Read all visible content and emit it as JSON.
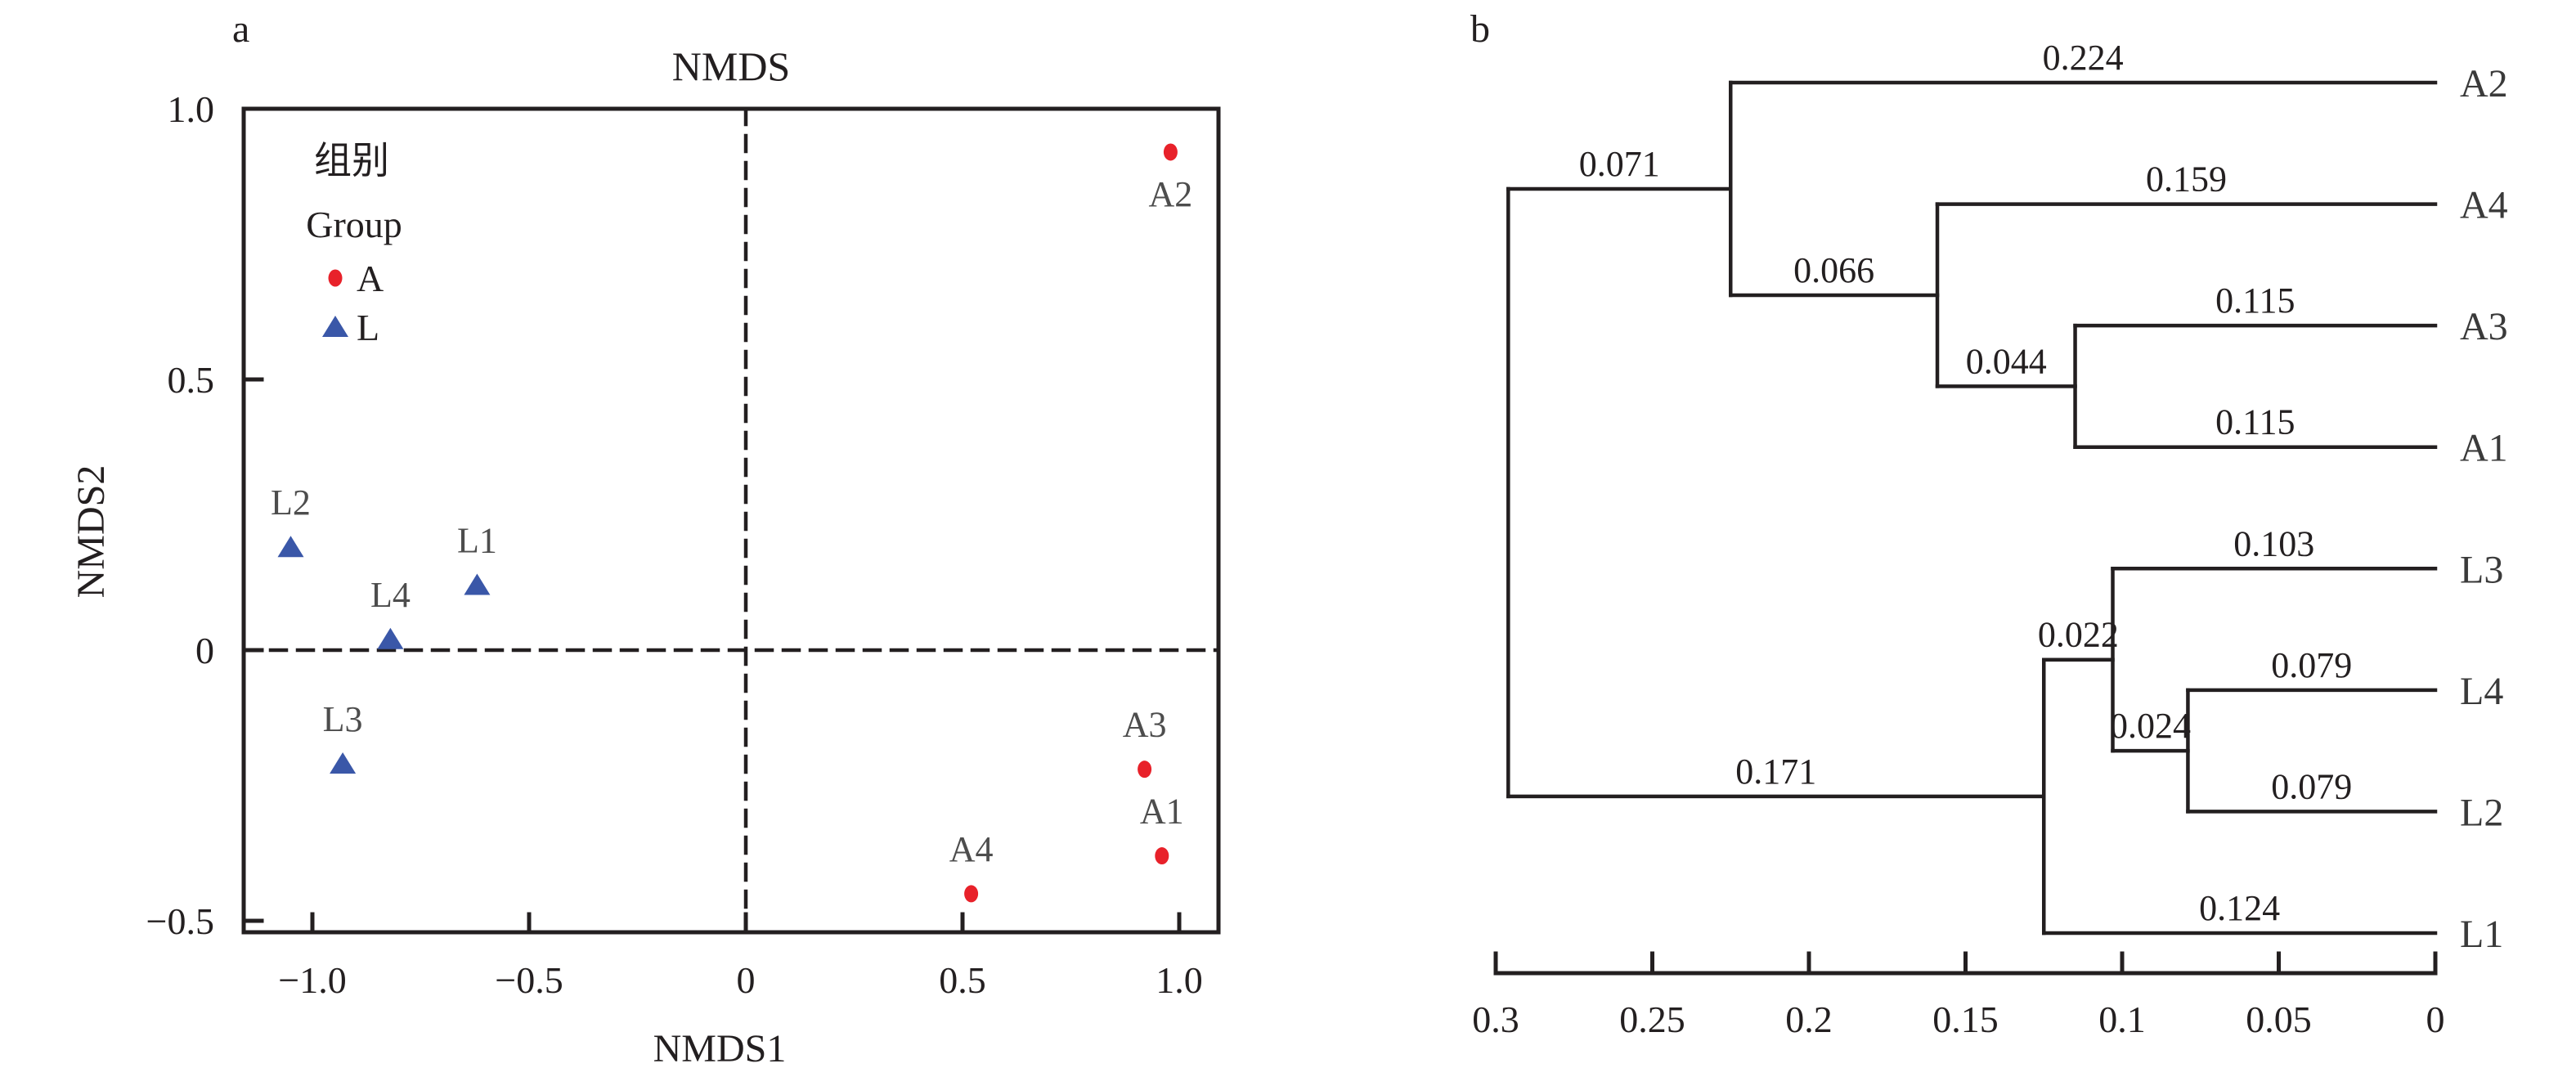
{
  "figure": {
    "panel_a_letter": "a",
    "panel_b_letter": "b",
    "colors": {
      "line": "#231f20",
      "point_label_gray": "#4d4d4d",
      "leaf_label": "#3a3a3a",
      "red": "#e8212a",
      "blue": "#3a57a8",
      "background": "#ffffff"
    }
  },
  "chart_data": [
    {
      "type": "scatter",
      "panel": "a",
      "title": "NMDS",
      "xlabel": "NMDS1",
      "ylabel": "NMDS2",
      "xlim": [
        -1.16,
        1.09
      ],
      "ylim": [
        -0.52,
        1.0
      ],
      "grid": false,
      "reference_lines": {
        "x": 0,
        "y": 0,
        "style": "dashed"
      },
      "xticks": [
        {
          "v": -1.0,
          "label": "−1.0"
        },
        {
          "v": -0.5,
          "label": "−0.5"
        },
        {
          "v": 0,
          "label": "0"
        },
        {
          "v": 0.5,
          "label": "0.5"
        },
        {
          "v": 1.0,
          "label": "1.0"
        }
      ],
      "yticks": [
        {
          "v": 1.0,
          "label": "1.0"
        },
        {
          "v": 0.5,
          "label": "0.5"
        },
        {
          "v": 0,
          "label": "0"
        },
        {
          "v": -0.5,
          "label": "−0.5"
        }
      ],
      "legend": {
        "title_cn": "组别",
        "title_en": "Group",
        "position": "upper-left-inside",
        "entries": [
          {
            "label": "A",
            "marker": "circle",
            "color": "#e8212a"
          },
          {
            "label": "L",
            "marker": "triangle",
            "color": "#3a57a8"
          }
        ]
      },
      "series": [
        {
          "name": "A",
          "marker": "circle",
          "color": "#e8212a",
          "points": [
            {
              "label": "A2",
              "x": 0.98,
              "y": 0.92,
              "label_pos": "below"
            },
            {
              "label": "A3",
              "x": 0.92,
              "y": -0.22,
              "label_pos": "above"
            },
            {
              "label": "A1",
              "x": 0.96,
              "y": -0.38,
              "label_pos": "above"
            },
            {
              "label": "A4",
              "x": 0.52,
              "y": -0.45,
              "label_pos": "above"
            }
          ]
        },
        {
          "name": "L",
          "marker": "triangle",
          "color": "#3a57a8",
          "points": [
            {
              "label": "L2",
              "x": -1.05,
              "y": 0.19,
              "label_pos": "above"
            },
            {
              "label": "L1",
              "x": -0.62,
              "y": 0.12,
              "label_pos": "above"
            },
            {
              "label": "L4",
              "x": -0.82,
              "y": 0.02,
              "label_pos": "above"
            },
            {
              "label": "L3",
              "x": -0.93,
              "y": -0.21,
              "label_pos": "above"
            }
          ]
        }
      ]
    },
    {
      "type": "dendrogram",
      "panel": "b",
      "orientation": "leaves-right",
      "axis": {
        "ticks": [
          {
            "v": 0.3,
            "label": "0.3"
          },
          {
            "v": 0.25,
            "label": "0.25"
          },
          {
            "v": 0.2,
            "label": "0.2"
          },
          {
            "v": 0.15,
            "label": "0.15"
          },
          {
            "v": 0.1,
            "label": "0.1"
          },
          {
            "v": 0.05,
            "label": "0.05"
          },
          {
            "v": 0,
            "label": "0"
          }
        ]
      },
      "leaf_order": [
        "A2",
        "A4",
        "A3",
        "A1",
        "L3",
        "L4",
        "L2",
        "L1"
      ],
      "tree": {
        "children": [
          {
            "length": 0.071,
            "length_label": "0.071",
            "children": [
              {
                "length": 0.224,
                "length_label": "0.224",
                "leaf": "A2"
              },
              {
                "length": 0.066,
                "length_label": "0.066",
                "children": [
                  {
                    "length": 0.159,
                    "length_label": "0.159",
                    "leaf": "A4"
                  },
                  {
                    "length": 0.044,
                    "length_label": "0.044",
                    "children": [
                      {
                        "length": 0.115,
                        "length_label": "0.115",
                        "leaf": "A3"
                      },
                      {
                        "length": 0.115,
                        "length_label": "0.115",
                        "leaf": "A1"
                      }
                    ]
                  }
                ]
              }
            ]
          },
          {
            "length": 0.171,
            "length_label": "0.171",
            "children": [
              {
                "length": 0.022,
                "length_label": "0.022",
                "children": [
                  {
                    "length": 0.103,
                    "length_label": "0.103",
                    "leaf": "L3"
                  },
                  {
                    "length": 0.024,
                    "length_label": "0.024",
                    "children": [
                      {
                        "length": 0.079,
                        "length_label": "0.079",
                        "leaf": "L4"
                      },
                      {
                        "length": 0.079,
                        "length_label": "0.079",
                        "leaf": "L2"
                      }
                    ]
                  }
                ]
              },
              {
                "length": 0.124,
                "length_label": "0.124",
                "leaf": "L1"
              }
            ]
          }
        ]
      }
    }
  ]
}
